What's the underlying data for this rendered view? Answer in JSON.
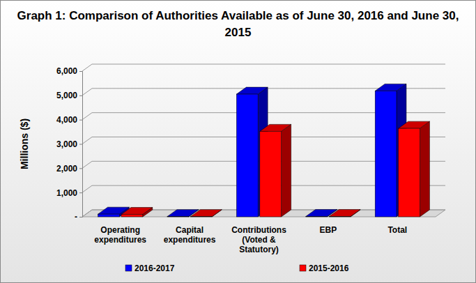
{
  "chart_data": {
    "type": "bar",
    "title": "Graph 1: Comparison of Authorities Available as of June 30, 2016 and June 30, 2015",
    "ylabel": "Millions ($)",
    "categories": [
      "Operating expenditures",
      "Capital expenditures",
      "Contributions (Voted & Statutory)",
      "EBP",
      "Total"
    ],
    "series": [
      {
        "name": "2016-2017",
        "color": "#0000ff",
        "values": [
          110,
          10,
          5050,
          15,
          5185
        ]
      },
      {
        "name": "2015-2016",
        "color": "#ff0000",
        "values": [
          100,
          10,
          3520,
          12,
          3642
        ]
      }
    ],
    "ylim": [
      0,
      6000
    ],
    "yticks": [
      {
        "value": 0,
        "label": "-"
      },
      {
        "value": 1000,
        "label": "1,000"
      },
      {
        "value": 2000,
        "label": "2,000"
      },
      {
        "value": 3000,
        "label": "3,000"
      },
      {
        "value": 4000,
        "label": "4,000"
      },
      {
        "value": 5000,
        "label": "5,000"
      },
      {
        "value": 6000,
        "label": "6,000"
      }
    ],
    "grid": true,
    "legend": "bottom"
  }
}
